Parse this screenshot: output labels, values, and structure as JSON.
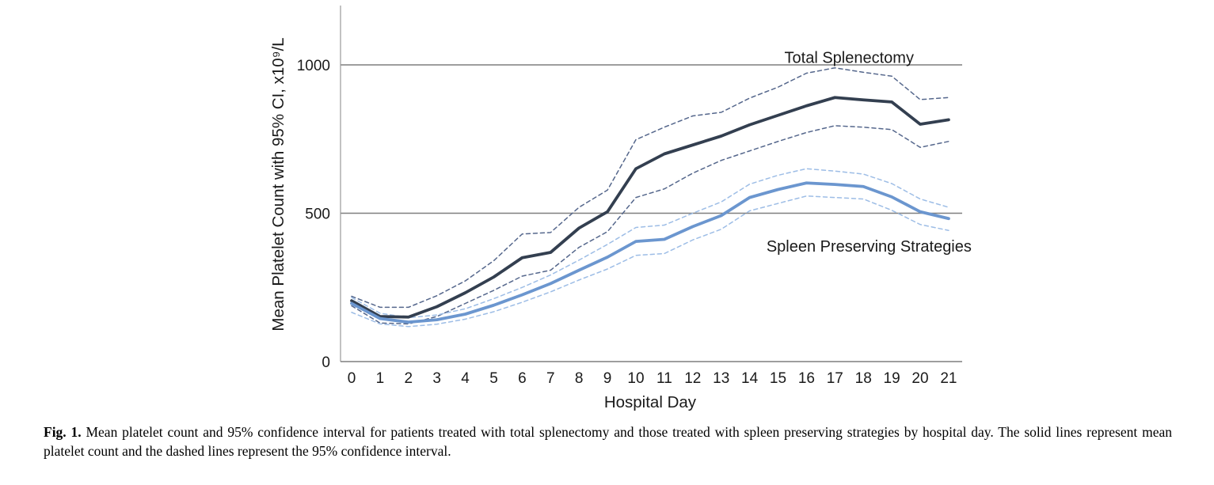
{
  "figure": {
    "caption_label": "Fig. 1.",
    "caption_text": " Mean platelet count and 95% confidence interval for patients treated with total splenectomy and those treated with spleen preserving strategies by hospital day. The solid lines represent mean platelet count and the dashed lines represent the 95% confidence interval."
  },
  "chart_data": {
    "type": "line",
    "title": "",
    "xlabel": "Hospital Day",
    "ylabel": "Mean Platelet Count with 95% CI, x10⁹/L",
    "x": [
      0,
      1,
      2,
      3,
      4,
      5,
      6,
      7,
      8,
      9,
      10,
      11,
      12,
      13,
      14,
      15,
      16,
      17,
      18,
      19,
      20,
      21
    ],
    "xlim": [
      -0.5,
      21.5
    ],
    "ylim": [
      0,
      1200
    ],
    "yticks": [
      0,
      500,
      1000
    ],
    "gridlines_y": [
      500,
      1000
    ],
    "grid": "horizontal-only",
    "legend_position": "none",
    "colors": {
      "total_solid": "#333f50",
      "total_ci": "#55678c",
      "spleen_solid": "#6b96cf",
      "spleen_ci": "#9dbde6",
      "gridline": "#7f7f7f",
      "text": "#1a1a1a"
    },
    "annotations": [
      {
        "text": "Total Splenectomy",
        "x": 17.5,
        "y": 1025
      },
      {
        "text": "Spleen Preserving Strategies",
        "x": 18.2,
        "y": 390
      }
    ],
    "series": [
      {
        "name": "Total Splenectomy upper 95% CI",
        "dash": true,
        "color": "#55678c",
        "values": [
          220,
          183,
          183,
          222,
          272,
          340,
          430,
          435,
          520,
          578,
          748,
          790,
          828,
          840,
          888,
          925,
          972,
          990,
          975,
          962,
          883,
          890
        ]
      },
      {
        "name": "Total Splenectomy lower 95% CI",
        "dash": true,
        "color": "#55678c",
        "values": [
          188,
          130,
          127,
          152,
          196,
          240,
          288,
          308,
          385,
          438,
          553,
          582,
          635,
          678,
          710,
          742,
          772,
          795,
          790,
          782,
          722,
          742
        ]
      },
      {
        "name": "Spleen Preserving upper 95% CI",
        "dash": true,
        "color": "#9dbde6",
        "values": [
          216,
          163,
          148,
          157,
          178,
          212,
          250,
          292,
          342,
          395,
          452,
          460,
          500,
          538,
          598,
          628,
          650,
          642,
          632,
          600,
          548,
          520
        ]
      },
      {
        "name": "Spleen Preserving lower 95% CI",
        "dash": true,
        "color": "#9dbde6",
        "values": [
          166,
          127,
          118,
          126,
          143,
          168,
          200,
          235,
          275,
          312,
          358,
          364,
          410,
          446,
          508,
          533,
          558,
          553,
          548,
          510,
          462,
          442
        ]
      },
      {
        "name": "Total Splenectomy mean",
        "dash": false,
        "color": "#333f50",
        "values": [
          205,
          152,
          150,
          185,
          232,
          285,
          350,
          368,
          450,
          505,
          650,
          700,
          730,
          760,
          798,
          830,
          862,
          890,
          882,
          875,
          800,
          815
        ]
      },
      {
        "name": "Spleen Preserving Strategies mean",
        "dash": false,
        "color": "#6b96cf",
        "values": [
          196,
          145,
          133,
          141,
          160,
          190,
          225,
          263,
          308,
          352,
          405,
          412,
          455,
          492,
          553,
          580,
          602,
          597,
          590,
          555,
          505,
          482
        ]
      }
    ]
  }
}
